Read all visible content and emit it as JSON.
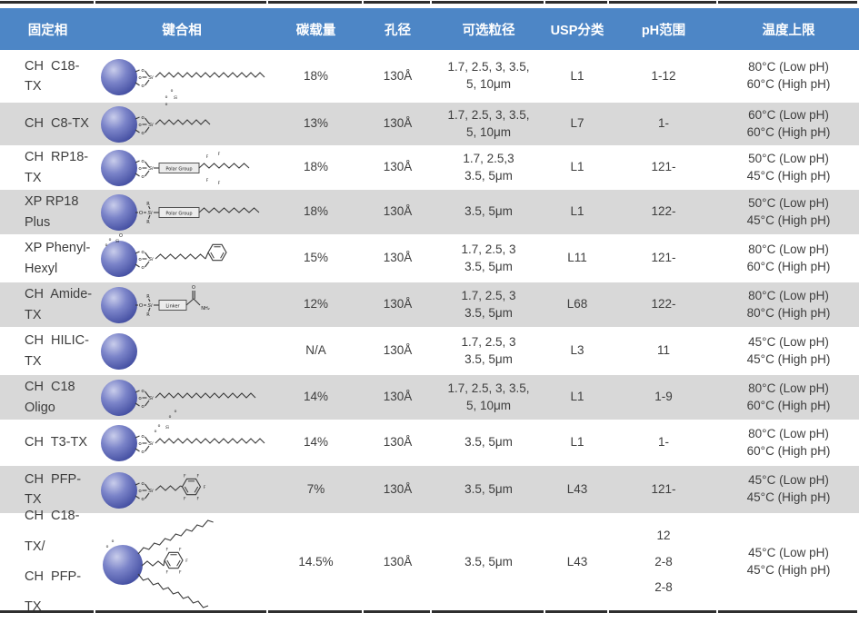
{
  "table": {
    "headers": [
      "固定相",
      "键合相",
      "碳载量",
      "孔径",
      "可选粒径",
      "USP分类",
      "pH范围",
      "温度上限"
    ],
    "rows": [
      {
        "name": "CH  C18-TX",
        "structure": "c18",
        "carbon": "18%",
        "pore": "130Å",
        "particles": [
          "1.7, 2.5, 3, 3.5,",
          "5, 10μm"
        ],
        "usp": "L1",
        "ph": [
          "1-12"
        ],
        "temp": [
          "80°C (Low pH)",
          "60°C (High pH)"
        ]
      },
      {
        "name": "CH  C8-TX",
        "structure": "c8",
        "carbon": "13%",
        "pore": "130Å",
        "particles": [
          "1.7, 2.5, 3, 3.5,",
          "5, 10μm"
        ],
        "usp": "L7",
        "ph": [
          "1-"
        ],
        "temp": [
          "60°C (Low pH)",
          "60°C (High pH)"
        ]
      },
      {
        "name": "CH  RP18-TX",
        "structure": "rp18",
        "carbon": "18%",
        "pore": "130Å",
        "particles": [
          "1.7, 2.5,3",
          "3.5, 5μm"
        ],
        "usp": "L1",
        "ph": [
          "121-"
        ],
        "temp": [
          "50°C (Low pH)",
          "45°C (High pH)"
        ]
      },
      {
        "name": "XP RP18 Plus",
        "structure": "rp18plus",
        "carbon": "18%",
        "pore": "130Å",
        "particles": [
          "3.5, 5μm"
        ],
        "usp": "L1",
        "ph": [
          "122-"
        ],
        "temp": [
          "50°C (Low pH)",
          "45°C (High pH)"
        ]
      },
      {
        "name": "XP Phenyl-\nHexyl",
        "structure": "phenylhexyl",
        "carbon": "15%",
        "pore": "130Å",
        "particles": [
          "1.7, 2.5, 3",
          "3.5, 5μm"
        ],
        "usp": "L11",
        "ph": [
          "121-"
        ],
        "temp": [
          "80°C (Low pH)",
          "60°C (High pH)"
        ]
      },
      {
        "name": "CH  Amide-TX",
        "structure": "amide",
        "carbon": "12%",
        "pore": "130Å",
        "particles": [
          "1.7, 2.5, 3",
          "3.5, 5μm"
        ],
        "usp": "L68",
        "ph": [
          "122-"
        ],
        "temp": [
          "80°C (Low pH)",
          "80°C (High pH)"
        ]
      },
      {
        "name": "CH  HILIC-TX",
        "structure": "hilic",
        "carbon": "N/A",
        "pore": "130Å",
        "particles": [
          "1.7, 2.5, 3",
          "3.5, 5μm"
        ],
        "usp": "L3",
        "ph": [
          "11"
        ],
        "temp": [
          "45°C (Low pH)",
          "45°C (High pH)"
        ]
      },
      {
        "name": "CH  C18  Oligo",
        "structure": "c18oligo",
        "carbon": "14%",
        "pore": "130Å",
        "particles": [
          "1.7, 2.5, 3, 3.5,",
          "5, 10μm"
        ],
        "usp": "L1",
        "ph": [
          "1-9"
        ],
        "temp": [
          "80°C (Low pH)",
          "60°C (High pH)"
        ]
      },
      {
        "name": "CH  T3-TX",
        "structure": "t3",
        "carbon": "14%",
        "pore": "130Å",
        "particles": [
          "3.5, 5μm"
        ],
        "usp": "L1",
        "ph": [
          "1-"
        ],
        "temp": [
          "80°C (Low pH)",
          "60°C (High pH)"
        ]
      },
      {
        "name": "CH  PFP-TX",
        "structure": "pfp",
        "carbon": "7%",
        "pore": "130Å",
        "particles": [
          "3.5, 5μm"
        ],
        "usp": "L43",
        "ph": [
          "121-"
        ],
        "temp": [
          "45°C (Low pH)",
          "45°C (High pH)"
        ]
      },
      {
        "name": "CH  C18-TX/\nCH  PFP-TX",
        "structure": "mixed",
        "carbon": "14.5%",
        "pore": "130Å",
        "particles": [
          "3.5, 5μm"
        ],
        "usp": "L43",
        "ph": [
          "12",
          "2-8",
          "2-8"
        ],
        "temp": [
          "45°C (Low pH)",
          "45°C (High pH)"
        ]
      }
    ]
  },
  "structure_labels": {
    "o_small": "o",
    "O": "O",
    "si": "Si",
    "r": "R",
    "f": "F",
    "polar_group": "Polar Group",
    "linker": "Linker",
    "nh2": "NH₂"
  },
  "colors": {
    "header_bg": "#4d86c6",
    "header_text": "#ffffff",
    "row_alt_bg": "#d8d8d8",
    "border_dark": "#2e2e2e",
    "text": "#3d3d3d",
    "sphere_mid": "#7b84c9",
    "sphere_dark": "#3f4a9e",
    "sphere_light": "#c9cdeb"
  }
}
